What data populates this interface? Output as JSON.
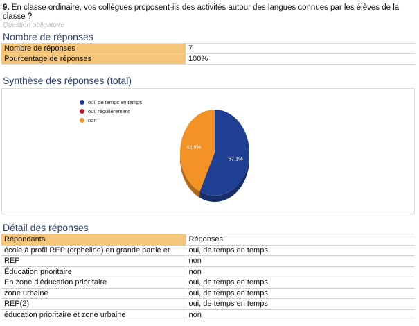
{
  "question": {
    "number": "9.",
    "text": "En classe ordinaire, vos collègues proposent-ils des activités autour des langues connues par les élèves de la classe ?",
    "meta": "Question obligatoire"
  },
  "summary": {
    "title": "Nombre de réponses",
    "rows": [
      {
        "label": "Nombre de réponses",
        "value": "7"
      },
      {
        "label": "Pourcentage de réponses",
        "value": "100%"
      }
    ]
  },
  "synthesis": {
    "title": "Synthèse des réponses (total)"
  },
  "chart_data": {
    "type": "pie",
    "title": "Synthèse des réponses (total)",
    "legend_position": "top-left",
    "series": [
      {
        "name": "oui, de temps en temps",
        "value": 57.1,
        "label": "57.1%",
        "color": "#1f3f93"
      },
      {
        "name": "oui, régulièrement",
        "value": 0,
        "label": "",
        "color": "#c0152a"
      },
      {
        "name": "non",
        "value": 42.9,
        "label": "42.9%",
        "color": "#f39325"
      }
    ]
  },
  "detail": {
    "title": "Détail des réponses",
    "headers": [
      "Répondants",
      "Réponses"
    ],
    "rows": [
      [
        "école à profil REP (orpheline) en grande partie et",
        "oui, de temps en temps"
      ],
      [
        "REP",
        "non"
      ],
      [
        "Éducation prioritaire",
        "non"
      ],
      [
        "En zone d'éducation prioritaire",
        "oui, de temps en temps"
      ],
      [
        "zone urbaine",
        "oui, de temps en temps"
      ],
      [
        "REP(2)",
        "oui, de temps en temps"
      ],
      [
        "éducation prioritaire et zone urbaine",
        "non"
      ]
    ]
  }
}
